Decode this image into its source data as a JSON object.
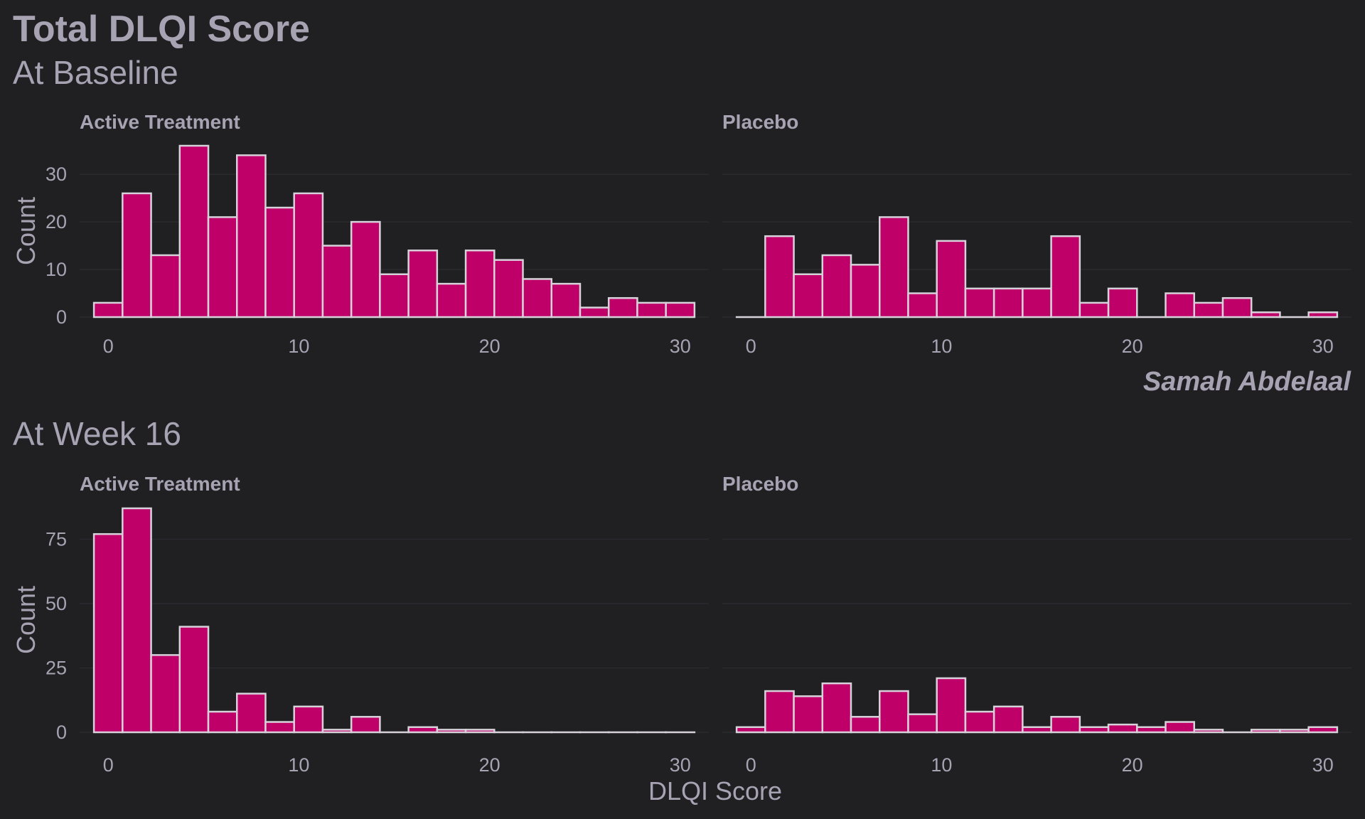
{
  "title": "Total DLQI Score",
  "caption": "Samah Abdelaal",
  "xlabel": "DLQI Score",
  "ylabel": "Count",
  "colors": {
    "background": "#202023",
    "bar_fill": "#be0068",
    "bar_outline": "#d7d2da",
    "text": "#a7a3b3",
    "grid": "#2b2b2f"
  },
  "chart_data": [
    {
      "type": "bar",
      "subtitle": "At Baseline",
      "ylabel": "Count",
      "xlim": [
        -1.5,
        31.5
      ],
      "ylim": [
        0,
        36
      ],
      "x_ticks": [
        0,
        10,
        20,
        30
      ],
      "y_ticks": [
        0,
        10,
        20,
        30
      ],
      "bin_centers": [
        0,
        1.5,
        3,
        4.5,
        6,
        7.5,
        9,
        10.5,
        12,
        13.5,
        15,
        16.5,
        18,
        19.5,
        21,
        22.5,
        24,
        25.5,
        27,
        28.5,
        30
      ],
      "bin_width": 1.5,
      "series": [
        {
          "name": "Active Treatment",
          "values": [
            3,
            26,
            13,
            36,
            21,
            34,
            23,
            26,
            15,
            20,
            9,
            14,
            7,
            14,
            12,
            8,
            7,
            2,
            4,
            3,
            3
          ]
        },
        {
          "name": "Placebo",
          "values": [
            0,
            17,
            9,
            13,
            11,
            21,
            5,
            16,
            6,
            6,
            6,
            17,
            3,
            6,
            0,
            5,
            3,
            4,
            1,
            0,
            1
          ]
        }
      ]
    },
    {
      "type": "bar",
      "subtitle": "At Week 16",
      "ylabel": "Count",
      "xlabel": "DLQI Score",
      "xlim": [
        -1.5,
        31.5
      ],
      "ylim": [
        0,
        87
      ],
      "x_ticks": [
        0,
        10,
        20,
        30
      ],
      "y_ticks": [
        0,
        25,
        50,
        75
      ],
      "bin_centers": [
        0,
        1.5,
        3,
        4.5,
        6,
        7.5,
        9,
        10.5,
        12,
        13.5,
        15,
        16.5,
        18,
        19.5,
        21,
        22.5,
        24,
        25.5,
        27,
        28.5,
        30
      ],
      "bin_width": 1.5,
      "series": [
        {
          "name": "Active Treatment",
          "values": [
            77,
            87,
            30,
            41,
            8,
            15,
            4,
            10,
            1,
            6,
            0,
            2,
            1,
            1,
            0,
            0,
            0,
            0,
            0,
            0,
            0
          ]
        },
        {
          "name": "Placebo",
          "values": [
            2,
            16,
            14,
            19,
            6,
            16,
            7,
            21,
            8,
            10,
            2,
            6,
            2,
            3,
            2,
            4,
            1,
            0,
            1,
            1,
            2
          ]
        }
      ]
    }
  ]
}
